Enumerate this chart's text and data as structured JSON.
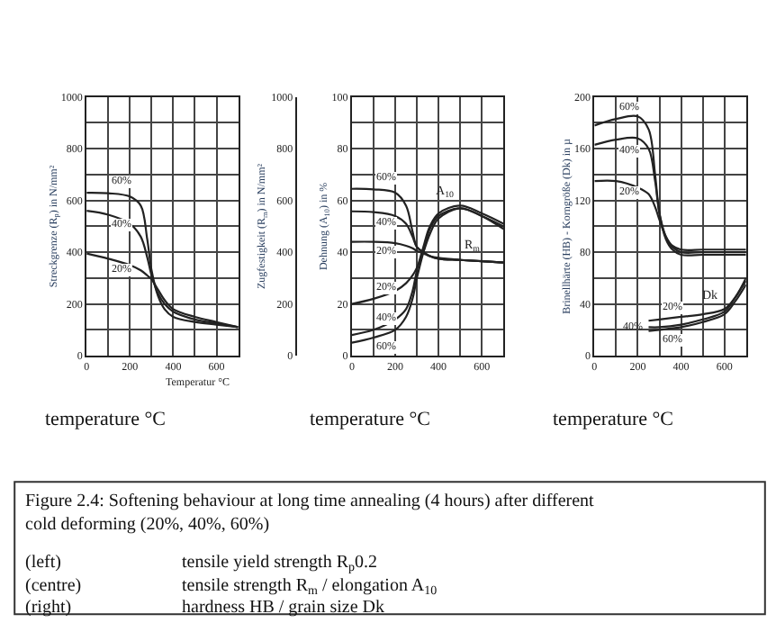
{
  "chart_data": [
    {
      "type": "line",
      "xlabel": "temperature °C",
      "ylabel": "Streckgrenze (R$_{p}$) in N/mm²",
      "annotations": [
        "Temperatur °C"
      ],
      "xlim": [
        0,
        700
      ],
      "xticks": [
        0,
        {
          "value": 100,
          "label": null
        },
        200,
        {
          "value": 300,
          "label": null
        },
        400,
        {
          "value": 500,
          "label": null
        },
        600,
        {
          "value": 700,
          "label": null
        }
      ],
      "ylim": [
        0,
        1000
      ],
      "yticks": [
        0,
        {
          "value": 100,
          "label": null
        },
        200,
        {
          "value": 300,
          "label": null
        },
        400,
        {
          "value": 500,
          "label": null
        },
        600,
        {
          "value": 700,
          "label": null
        },
        800,
        {
          "value": 900,
          "label": null
        },
        1000
      ],
      "grid": true,
      "series": [
        {
          "name": "60%",
          "color": "#222222",
          "x": [
            0,
            100,
            200,
            250,
            280,
            300,
            330,
            360,
            400,
            500,
            600,
            700
          ],
          "values": [
            630,
            628,
            615,
            580,
            450,
            330,
            230,
            180,
            150,
            130,
            120,
            110
          ]
        },
        {
          "name": "40%",
          "color": "#222222",
          "x": [
            0,
            100,
            200,
            250,
            280,
            300,
            330,
            360,
            400,
            500,
            600,
            700
          ],
          "values": [
            560,
            545,
            510,
            460,
            380,
            310,
            240,
            200,
            170,
            140,
            125,
            110
          ]
        },
        {
          "name": "20%",
          "color": "#222222",
          "x": [
            0,
            100,
            200,
            250,
            280,
            300,
            330,
            360,
            400,
            500,
            600,
            700
          ],
          "values": [
            395,
            375,
            350,
            330,
            310,
            295,
            255,
            215,
            180,
            150,
            130,
            110
          ]
        }
      ]
    },
    {
      "type": "line",
      "xlabel": "temperature °C",
      "ylabel": "Zugfestigkeit (R$_{m}$) in N/mm²",
      "y2label": "Dehnung (A$_{10}$) in %",
      "annotations": [
        {
          "text": "A$_{10}$",
          "x": 500,
          "y": 575
        },
        {
          "text": "R$_{m}$",
          "x": 620,
          "y": 363
        }
      ],
      "xlim": [
        0,
        700
      ],
      "xticks": [
        0,
        {
          "value": 100,
          "label": null
        },
        200,
        {
          "value": 300,
          "label": null
        },
        400,
        {
          "value": 500,
          "label": null
        },
        600,
        {
          "value": 700,
          "label": null
        }
      ],
      "ylim": [
        0,
        1000
      ],
      "yticks": [
        0,
        200,
        400,
        600,
        800,
        1000
      ],
      "y2lim": [
        0,
        100
      ],
      "y2ticks": [
        0,
        {
          "value": 10,
          "label": null
        },
        20,
        {
          "value": 30,
          "label": null
        },
        40,
        {
          "value": 50,
          "label": null
        },
        60,
        {
          "value": 70,
          "label": null
        },
        80,
        {
          "value": 90,
          "label": null
        },
        100
      ],
      "grid": true,
      "series": [
        {
          "name": "60%",
          "color": "#222222",
          "x": [
            0,
            100,
            200,
            250,
            280,
            300,
            330,
            360,
            400,
            500,
            600,
            700
          ],
          "values": [
            645,
            643,
            630,
            580,
            480,
            420,
            400,
            385,
            375,
            370,
            365,
            360
          ]
        },
        {
          "name": "40%",
          "color": "#222222",
          "x": [
            0,
            100,
            200,
            250,
            280,
            300,
            330,
            360,
            400,
            500,
            600,
            700
          ],
          "values": [
            558,
            555,
            540,
            510,
            460,
            420,
            400,
            385,
            375,
            370,
            365,
            360
          ]
        },
        {
          "name": "20%",
          "color": "#222222",
          "x": [
            0,
            100,
            200,
            250,
            280,
            300,
            330,
            360,
            400,
            500,
            600,
            700
          ],
          "values": [
            440,
            440,
            435,
            425,
            415,
            405,
            395,
            385,
            378,
            370,
            365,
            360
          ]
        },
        {
          "name": "20%",
          "color": "#222222",
          "axis": "y2",
          "x": [
            0,
            100,
            200,
            250,
            280,
            300,
            330,
            360,
            400,
            500,
            600,
            700
          ],
          "values": [
            20,
            22,
            25,
            28,
            31,
            34,
            40,
            47,
            53,
            57,
            54,
            50
          ]
        },
        {
          "name": "40%",
          "color": "#222222",
          "axis": "y2",
          "x": [
            0,
            100,
            200,
            250,
            280,
            300,
            330,
            360,
            400,
            500,
            600,
            700
          ],
          "values": [
            8,
            10,
            14,
            18,
            25,
            33,
            42,
            50,
            55,
            58,
            55,
            51
          ]
        },
        {
          "name": "60%",
          "color": "#222222",
          "axis": "y2",
          "x": [
            0,
            100,
            200,
            250,
            280,
            300,
            330,
            360,
            400,
            500,
            600,
            700
          ],
          "values": [
            5,
            7,
            10,
            15,
            22,
            30,
            40,
            49,
            54,
            57,
            54,
            49
          ]
        }
      ]
    },
    {
      "type": "line",
      "xlabel": "temperature °C",
      "ylabel": "Brinellhärte (HB) - Korngröße (Dk) in µ",
      "annotations": [
        {
          "text": "Dk",
          "x": 600,
          "y": 36
        }
      ],
      "xlim": [
        0,
        700
      ],
      "xticks": [
        0,
        {
          "value": 100,
          "label": null
        },
        200,
        {
          "value": 300,
          "label": null
        },
        400,
        {
          "value": 500,
          "label": null
        },
        600,
        {
          "value": 700,
          "label": null
        }
      ],
      "ylim": [
        0,
        200
      ],
      "yticks": [
        0,
        {
          "value": 20,
          "label": null
        },
        40,
        {
          "value": 60,
          "label": null
        },
        80,
        {
          "value": 100,
          "label": null
        },
        120,
        {
          "value": 140,
          "label": null
        },
        160,
        {
          "value": 180,
          "label": null
        },
        200
      ],
      "grid": true,
      "series": [
        {
          "name": "60%",
          "color": "#222222",
          "x": [
            0,
            100,
            200,
            250,
            280,
            300,
            330,
            360,
            400,
            500,
            600,
            700
          ],
          "values": [
            178,
            183,
            185,
            175,
            140,
            110,
            90,
            82,
            78,
            78,
            78,
            78
          ]
        },
        {
          "name": "40%",
          "color": "#222222",
          "x": [
            0,
            100,
            200,
            250,
            280,
            300,
            330,
            360,
            400,
            500,
            600,
            700
          ],
          "values": [
            163,
            167,
            168,
            160,
            135,
            110,
            92,
            84,
            80,
            80,
            80,
            80
          ]
        },
        {
          "name": "20%",
          "color": "#222222",
          "x": [
            0,
            100,
            200,
            250,
            280,
            300,
            330,
            360,
            400,
            500,
            600,
            700
          ],
          "values": [
            135,
            135,
            130,
            125,
            115,
            105,
            92,
            85,
            82,
            82,
            82,
            82
          ]
        },
        {
          "name": "20%",
          "color": "#222222",
          "x": [
            250,
            300,
            400,
            500,
            600,
            650,
            700
          ],
          "values": [
            27,
            28,
            30,
            32,
            36,
            45,
            60
          ]
        },
        {
          "name": "40%",
          "color": "#222222",
          "x": [
            250,
            300,
            400,
            500,
            600,
            650,
            700
          ],
          "values": [
            22,
            22,
            24,
            28,
            34,
            45,
            58
          ]
        },
        {
          "name": "60%",
          "color": "#222222",
          "x": [
            250,
            300,
            400,
            500,
            600,
            650,
            700
          ],
          "values": [
            19,
            20,
            22,
            26,
            32,
            42,
            55
          ]
        }
      ]
    },
    {
      "type": "other",
      "annotations": [
        "Figure 2.4: Softening behaviour at long time annealing (4 hours) after different cold deforming (20%, 40%, 60%)",
        "(left)",
        "tensile yield strength R$_{p}$0.2",
        "(centre)",
        "tensile strength R$_{m}$ / elongation A$_{10}$",
        "(right)",
        "hardness HB / grain size Dk"
      ]
    }
  ]
}
